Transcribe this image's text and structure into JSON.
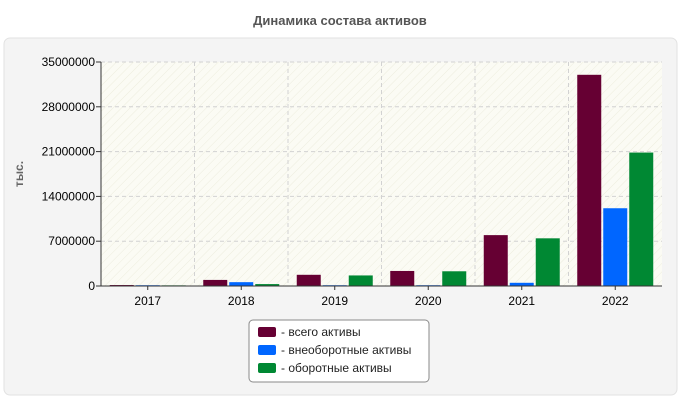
{
  "chart_data": {
    "type": "bar",
    "title": "Динамика состава активов",
    "ylabel": "тыс.",
    "xlabel": "",
    "categories": [
      "2017",
      "2018",
      "2019",
      "2020",
      "2021",
      "2022"
    ],
    "ylim": [
      0,
      35000000
    ],
    "yticks": [
      0,
      7000000,
      14000000,
      21000000,
      28000000,
      35000000
    ],
    "grid": true,
    "legend_position": "bottom-center",
    "series": [
      {
        "name": "- всего активы",
        "color": "#660033",
        "values": [
          150000,
          950000,
          1750000,
          2350000,
          7950000,
          33000000
        ]
      },
      {
        "name": "- внеоборотные активы",
        "color": "#0066ff",
        "values": [
          120000,
          600000,
          120000,
          120000,
          500000,
          12150000
        ]
      },
      {
        "name": "- оборотные активы",
        "color": "#008833",
        "values": [
          100000,
          300000,
          1650000,
          2300000,
          7450000,
          20850000
        ]
      }
    ]
  }
}
